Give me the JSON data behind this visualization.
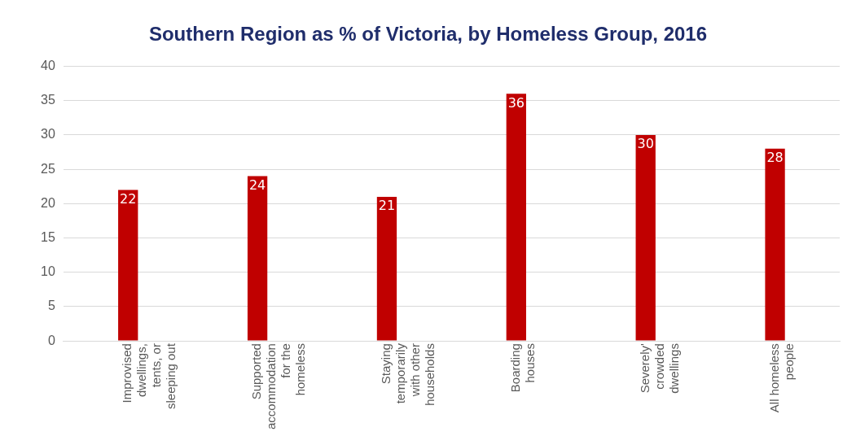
{
  "chart_data": {
    "type": "bar",
    "title": "Southern Region as % of Victoria, by Homeless Group, 2016",
    "categories": [
      "Improvised dwellings, tents, or sleeping out",
      "Supported accommodation for the homeless",
      "Staying temporarily with other households",
      "Boarding houses",
      "Severely' crowded dwellings",
      "All homeless people"
    ],
    "values": [
      22,
      24,
      21,
      36,
      30,
      28
    ],
    "color": "#c00000",
    "ylim": [
      0,
      40
    ],
    "yticks": [
      0,
      5,
      10,
      15,
      20,
      25,
      30,
      35,
      40
    ],
    "grid": "y",
    "data_labels": true,
    "legend": false
  }
}
